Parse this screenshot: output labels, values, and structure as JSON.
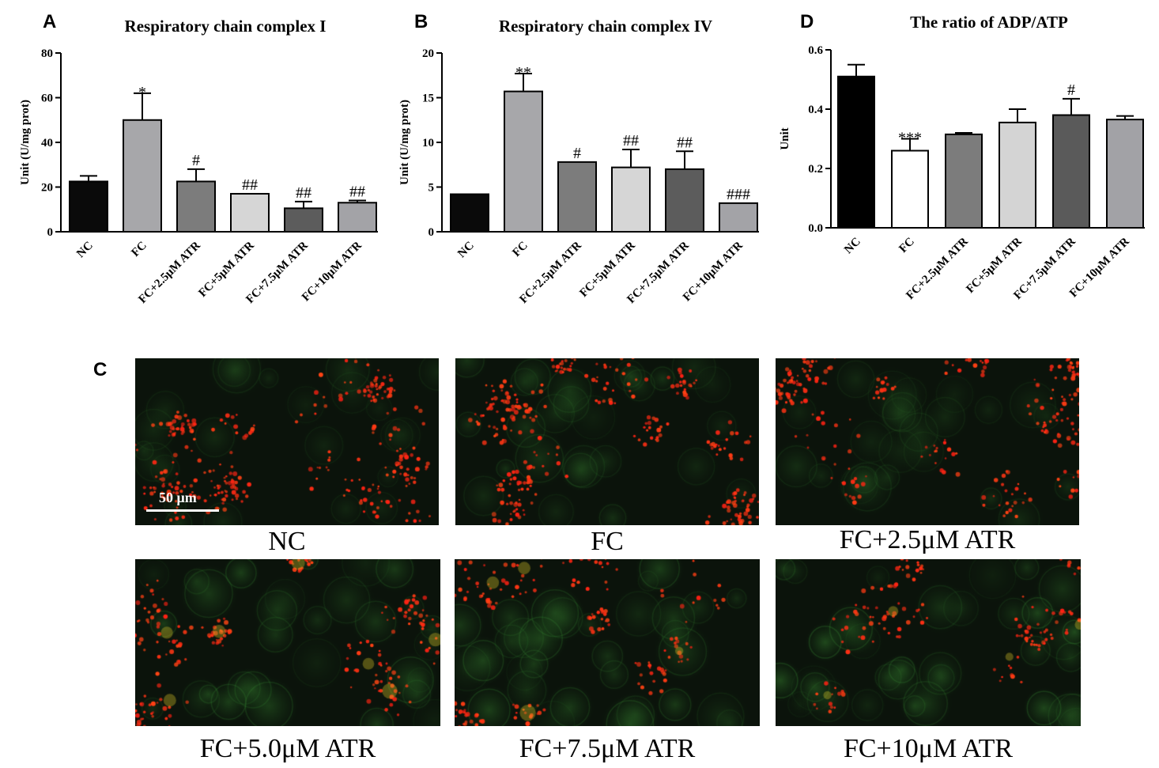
{
  "panels": {
    "a": "A",
    "b": "B",
    "c": "C",
    "d": "D"
  },
  "chart_data": [
    {
      "id": "A",
      "type": "bar",
      "title": "Respiratory chain complex I",
      "xlabel": "",
      "ylabel": "Unit (U/mg prot)",
      "ylim": [
        0,
        80
      ],
      "yticks": [
        "0",
        "20",
        "40",
        "60",
        "80"
      ],
      "categories": [
        "NC",
        "FC",
        "FC+2.5μM ATR",
        "FC+5μM ATR",
        "FC+7.5μM ATR",
        "FC+10μM ATR"
      ],
      "values": [
        22.5,
        50,
        22.5,
        17,
        10.5,
        13
      ],
      "errors": [
        2.5,
        12,
        5.5,
        0,
        3,
        1
      ],
      "annotations": [
        "",
        "*",
        "#",
        "##",
        "##",
        "##"
      ],
      "colors": [
        "#0a0a0a",
        "#a7a7aa",
        "#7c7c7c",
        "#d6d6d6",
        "#5c5c5c",
        "#a3a3a7"
      ],
      "grid": false
    },
    {
      "id": "B",
      "type": "bar",
      "title": "Respiratory chain complex IV",
      "xlabel": "",
      "ylabel": "Unit (U/mg prot)",
      "ylim": [
        0,
        20
      ],
      "yticks": [
        "0",
        "5",
        "10",
        "15",
        "20"
      ],
      "categories": [
        "NC",
        "FC",
        "FC+2.5μM ATR",
        "FC+5μM ATR",
        "FC+7.5μM ATR",
        "FC+10μM ATR"
      ],
      "values": [
        4.2,
        15.7,
        7.8,
        7.2,
        7.0,
        3.2
      ],
      "errors": [
        0,
        2.0,
        0,
        2.0,
        2.0,
        0
      ],
      "annotations": [
        "",
        "**",
        "#",
        "##",
        "##",
        "###"
      ],
      "colors": [
        "#0a0a0a",
        "#a7a7aa",
        "#7c7c7c",
        "#d6d6d6",
        "#5c5c5c",
        "#a3a3a7"
      ],
      "grid": false
    },
    {
      "id": "D",
      "type": "bar",
      "title": "The ratio of ADP/ATP",
      "xlabel": "",
      "ylabel": "Unit",
      "ylim": [
        0,
        0.6
      ],
      "yticks": [
        "0.0",
        "0.2",
        "0.4",
        "0.6"
      ],
      "categories": [
        "NC",
        "FC",
        "FC+2.5μM ATR",
        "FC+5μM ATR",
        "FC+7.5μM ATR",
        "FC+10μM ATR"
      ],
      "values": [
        0.51,
        0.26,
        0.315,
        0.355,
        0.38,
        0.365
      ],
      "errors": [
        0.04,
        0.04,
        0.005,
        0.045,
        0.055,
        0.012
      ],
      "annotations": [
        "",
        "***",
        "",
        "",
        "#",
        ""
      ],
      "colors": [
        "#000000",
        "#ffffff",
        "#7c7c7c",
        "#d4d4d4",
        "#5a5a5a",
        "#a2a2a6"
      ],
      "grid": false
    }
  ],
  "micrographs": [
    {
      "label": "NC",
      "scale_bar": "50 μm",
      "green_level": 0.25,
      "red_level": 0.9
    },
    {
      "label": "FC",
      "green_level": 0.4,
      "red_level": 0.85
    },
    {
      "label": "FC+2.5μM ATR",
      "green_level": 0.3,
      "red_level": 0.7
    },
    {
      "label": "FC+5.0μM ATR",
      "green_level": 0.6,
      "red_level": 0.55
    },
    {
      "label": "FC+7.5μM ATR",
      "green_level": 0.65,
      "red_level": 0.45
    },
    {
      "label": "FC+10μM ATR",
      "green_level": 0.8,
      "red_level": 0.35
    }
  ],
  "colors": {
    "red_signal": "#ff2a1a",
    "green_signal": "#3aa63a",
    "background": "#0b130b"
  }
}
